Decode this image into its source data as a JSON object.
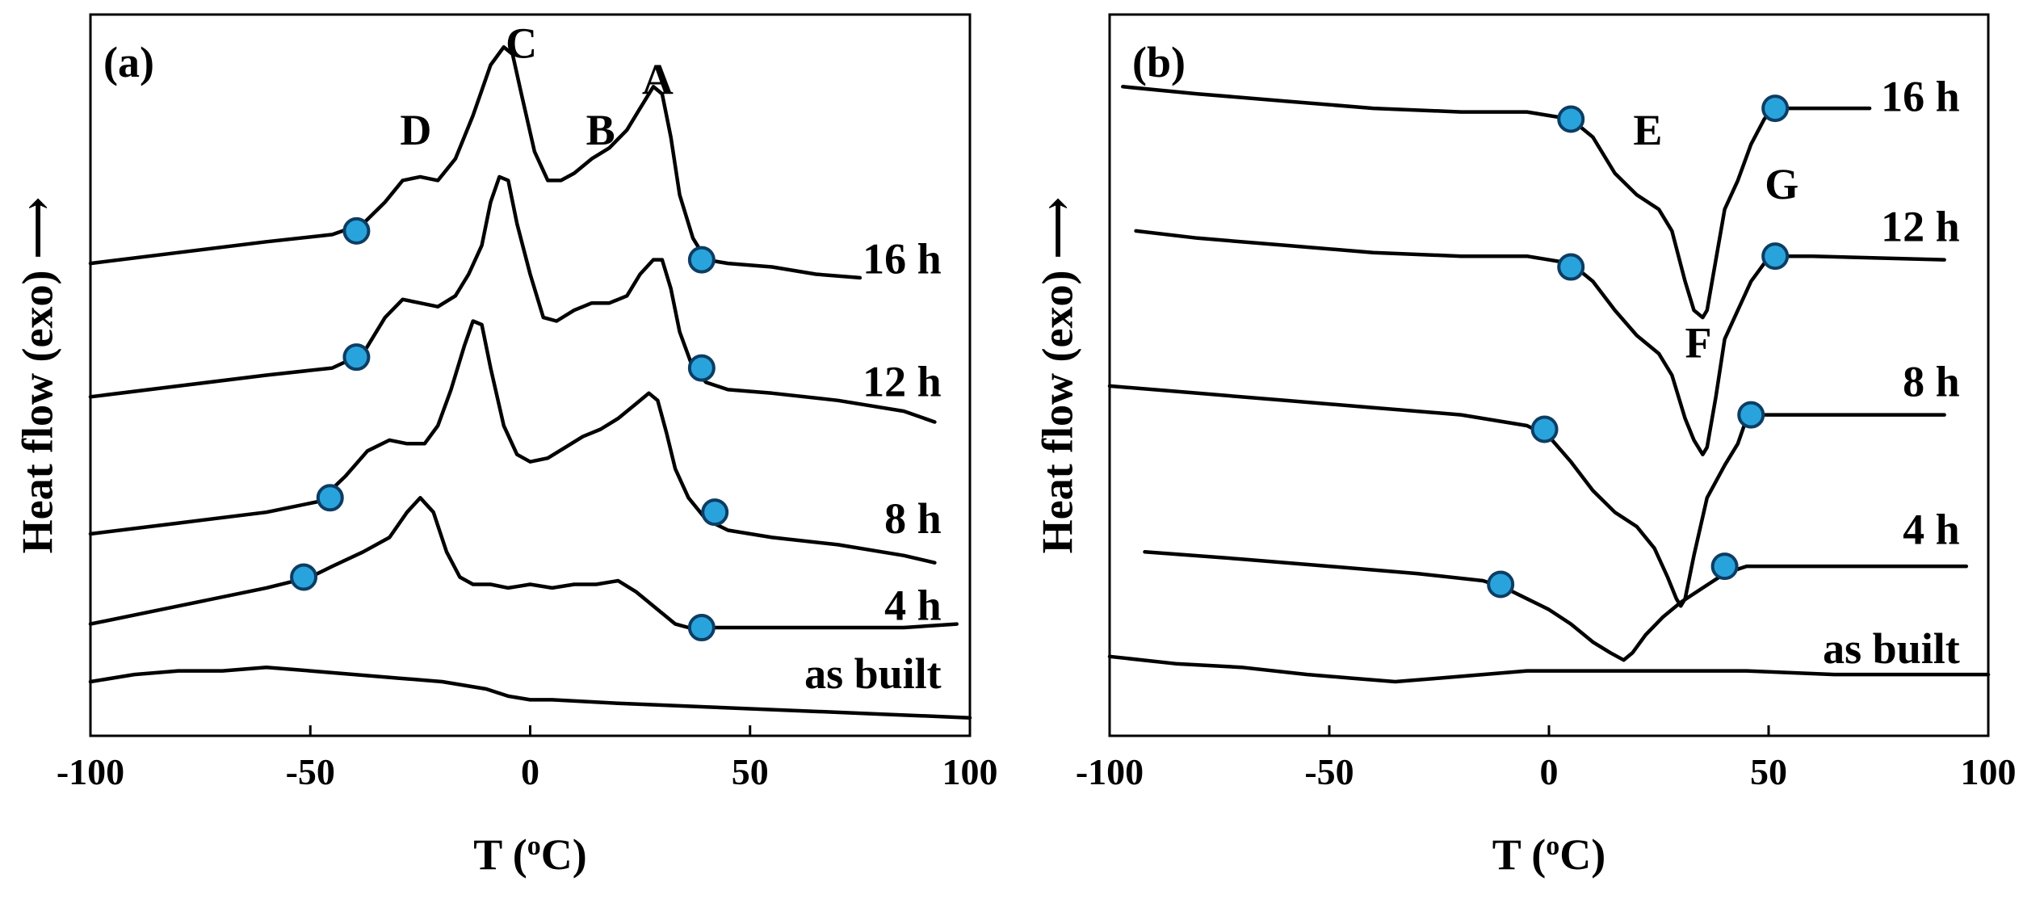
{
  "colors": {
    "line": "#000000",
    "marker_fill": "#29a3dc",
    "marker_edge": "#0d3d63",
    "background": "#ffffff"
  },
  "chart_data": [
    {
      "type": "line",
      "panel_label": "(a)",
      "xlabel_main": "T (",
      "xlabel_sup": "o",
      "xlabel_unit": "C)",
      "ylabel": "Heat flow (exo) ⟶",
      "xlim": [
        -100,
        100
      ],
      "xticks": [
        -100,
        -50,
        0,
        50,
        100
      ],
      "ylim": [
        0,
        100
      ],
      "y_ticks_shown": false,
      "peak_labels": [
        {
          "text": "C",
          "x": -2,
          "y": 96
        },
        {
          "text": "D",
          "x": -26,
          "y": 84
        },
        {
          "text": "B",
          "x": 16,
          "y": 84
        },
        {
          "text": "A",
          "x": 29,
          "y": 91
        }
      ],
      "series": [
        {
          "name": "16 h",
          "label_x": 88,
          "label_y": 66,
          "x": [
            -100,
            -80,
            -60,
            -45,
            -38,
            -33,
            -29,
            -25,
            -21,
            -17,
            -13,
            -9,
            -6,
            -4,
            -2,
            1,
            4,
            7,
            10,
            14,
            18,
            22,
            25,
            28,
            30,
            32,
            34,
            37,
            40,
            45,
            55,
            65,
            75
          ],
          "y": [
            65.5,
            67,
            68.5,
            69.5,
            71,
            74,
            77,
            77.5,
            77,
            80,
            86,
            93,
            95.5,
            94.5,
            89,
            81,
            77,
            77,
            78,
            80,
            81.5,
            84,
            87,
            90,
            89,
            83,
            75,
            69,
            66,
            65.5,
            65,
            64,
            63.5
          ],
          "markers": [
            {
              "x": -39.5,
              "y": 70
            },
            {
              "x": 39,
              "y": 66
            }
          ]
        },
        {
          "name": "12 h",
          "label_x": 88,
          "label_y": 49,
          "x": [
            -100,
            -80,
            -60,
            -45,
            -38,
            -33,
            -29,
            -25,
            -21,
            -17,
            -14,
            -11,
            -9,
            -7,
            -5,
            -3,
            0,
            3,
            6,
            10,
            14,
            18,
            22,
            25,
            28,
            30,
            32,
            34,
            37,
            40,
            45,
            55,
            70,
            85,
            92
          ],
          "y": [
            47,
            48.5,
            50,
            51,
            53,
            58,
            60.5,
            60,
            59.5,
            61,
            64,
            68,
            74,
            77.5,
            77,
            71,
            64,
            58,
            57.5,
            59,
            60,
            60,
            61,
            64,
            66,
            66,
            62,
            56,
            51,
            49,
            48,
            47.5,
            46.5,
            45,
            43.5
          ],
          "markers": [
            {
              "x": -39.5,
              "y": 52.5
            },
            {
              "x": 39,
              "y": 51
            }
          ]
        },
        {
          "name": "8 h",
          "label_x": 88,
          "label_y": 30,
          "x": [
            -100,
            -80,
            -60,
            -48,
            -42,
            -37,
            -32,
            -28,
            -24,
            -21,
            -18,
            -15,
            -13,
            -11,
            -9,
            -6,
            -3,
            0,
            4,
            8,
            12,
            16,
            20,
            24,
            27,
            29,
            31,
            33,
            36,
            40,
            45,
            55,
            70,
            85,
            92
          ],
          "y": [
            28,
            29.5,
            31,
            32.5,
            36,
            39.5,
            41,
            40.5,
            40.5,
            43,
            48,
            54,
            57.5,
            57,
            51,
            43,
            39,
            38,
            38.5,
            40,
            41.5,
            42.5,
            44,
            46,
            47.5,
            46.5,
            42,
            37,
            33,
            30,
            28.5,
            27.5,
            26.5,
            25,
            24
          ],
          "markers": [
            {
              "x": -45.5,
              "y": 33
            },
            {
              "x": 42,
              "y": 31
            }
          ]
        },
        {
          "name": "4 h",
          "label_x": 88,
          "label_y": 18,
          "x": [
            -100,
            -80,
            -60,
            -50,
            -45,
            -38,
            -32,
            -28,
            -25,
            -22,
            -19,
            -16,
            -13,
            -9,
            -5,
            0,
            5,
            10,
            15,
            20,
            24,
            27,
            30,
            33,
            36,
            40,
            45,
            55,
            70,
            85,
            97
          ],
          "y": [
            15.5,
            18,
            20.5,
            22,
            23.5,
            25.5,
            27.5,
            31,
            33,
            31,
            25.5,
            22,
            21,
            21,
            20.5,
            21,
            20.5,
            21,
            21,
            21.5,
            20,
            18.5,
            17,
            15.5,
            15,
            15,
            15,
            15,
            15,
            15,
            15.5
          ],
          "markers": [
            {
              "x": -51.5,
              "y": 22
            },
            {
              "x": 39,
              "y": 15
            }
          ]
        },
        {
          "name": "as built",
          "label_x": 88,
          "label_y": 8.5,
          "x": [
            -100,
            -90,
            -80,
            -70,
            -60,
            -50,
            -40,
            -30,
            -20,
            -15,
            -10,
            -5,
            0,
            5,
            20,
            40,
            60,
            80,
            100
          ],
          "y": [
            7.5,
            8.5,
            9,
            9,
            9.5,
            9,
            8.5,
            8,
            7.5,
            7,
            6.5,
            5.5,
            5,
            5,
            4.5,
            4,
            3.5,
            3,
            2.5
          ],
          "markers": []
        }
      ]
    },
    {
      "type": "line",
      "panel_label": "(b)",
      "xlabel_main": "T (",
      "xlabel_sup": "o",
      "xlabel_unit": "C)",
      "ylabel": "Heat flow (exo) ⟶",
      "xlim": [
        -100,
        100
      ],
      "xticks": [
        -100,
        -50,
        0,
        50,
        100
      ],
      "ylim": [
        0,
        100
      ],
      "y_ticks_shown": false,
      "peak_labels": [
        {
          "text": "E",
          "x": 22.5,
          "y": 84
        },
        {
          "text": "G",
          "x": 53,
          "y": 76.5
        },
        {
          "text": "F",
          "x": 34,
          "y": 54.5
        }
      ],
      "series": [
        {
          "name": "16 h",
          "label_x": 88,
          "label_y": 88.5,
          "x": [
            -97,
            -80,
            -60,
            -40,
            -20,
            -5,
            5,
            10,
            15,
            20,
            25,
            28,
            31,
            33,
            35,
            36,
            38,
            40,
            43,
            46,
            49,
            51,
            53,
            60,
            73
          ],
          "y": [
            90,
            89,
            88,
            87,
            86.5,
            86.5,
            85.5,
            83,
            78,
            75,
            73,
            70,
            63,
            59,
            58,
            59,
            66,
            73,
            77,
            82,
            85.5,
            87,
            87,
            87,
            87
          ],
          "markers": [
            {
              "x": 5,
              "y": 85.5
            },
            {
              "x": 51.5,
              "y": 87
            }
          ]
        },
        {
          "name": "12 h",
          "label_x": 88,
          "label_y": 70.5,
          "x": [
            -94,
            -80,
            -60,
            -40,
            -20,
            -5,
            5,
            10,
            15,
            20,
            25,
            28,
            31,
            33,
            35,
            36,
            38,
            40,
            43,
            46,
            49,
            51,
            53,
            60,
            90
          ],
          "y": [
            70,
            69,
            68,
            67,
            66.5,
            66.5,
            65.5,
            63,
            59,
            55.5,
            53,
            50,
            44,
            41,
            39,
            40,
            47,
            55,
            59,
            63,
            65.5,
            66.5,
            66.5,
            66.5,
            66
          ],
          "markers": [
            {
              "x": 5,
              "y": 65
            },
            {
              "x": 51.5,
              "y": 66.5
            }
          ]
        },
        {
          "name": "8 h",
          "label_x": 88,
          "label_y": 49,
          "x": [
            -100,
            -80,
            -60,
            -40,
            -20,
            -5,
            0,
            5,
            10,
            15,
            20,
            24,
            27,
            29,
            30,
            31,
            33,
            36,
            40,
            43,
            45,
            47,
            55,
            70,
            90
          ],
          "y": [
            48.5,
            47.5,
            46.5,
            45.5,
            44.5,
            43,
            41.5,
            38,
            34,
            31,
            29,
            26,
            22,
            19,
            18,
            19,
            25,
            33,
            37.5,
            40.5,
            44,
            44.5,
            44.5,
            44.5,
            44.5
          ],
          "markers": [
            {
              "x": -1,
              "y": 42.5
            },
            {
              "x": 46,
              "y": 44.5
            }
          ]
        },
        {
          "name": "4 h",
          "label_x": 88,
          "label_y": 28.5,
          "x": [
            -92,
            -70,
            -50,
            -30,
            -15,
            -10,
            -5,
            0,
            5,
            10,
            14,
            17,
            19,
            22,
            26,
            30,
            35,
            40,
            45,
            60,
            80,
            95
          ],
          "y": [
            25.5,
            24.5,
            23.5,
            22.5,
            21.5,
            20.5,
            19,
            17.5,
            15.5,
            13,
            11.5,
            10.5,
            11.5,
            14,
            16.5,
            18.5,
            20.5,
            22.5,
            23.5,
            23.5,
            23.5,
            23.5
          ],
          "markers": [
            {
              "x": -11,
              "y": 21
            },
            {
              "x": 40,
              "y": 23.5
            }
          ]
        },
        {
          "name": "as built",
          "label_x": 88,
          "label_y": 12,
          "x": [
            -100,
            -85,
            -70,
            -55,
            -45,
            -35,
            -25,
            -15,
            -5,
            5,
            25,
            45,
            65,
            85,
            100
          ],
          "y": [
            11,
            10,
            9.5,
            8.5,
            8,
            7.5,
            8,
            8.5,
            9,
            9,
            9,
            9,
            8.5,
            8.5,
            8.5
          ],
          "markers": []
        }
      ]
    }
  ]
}
